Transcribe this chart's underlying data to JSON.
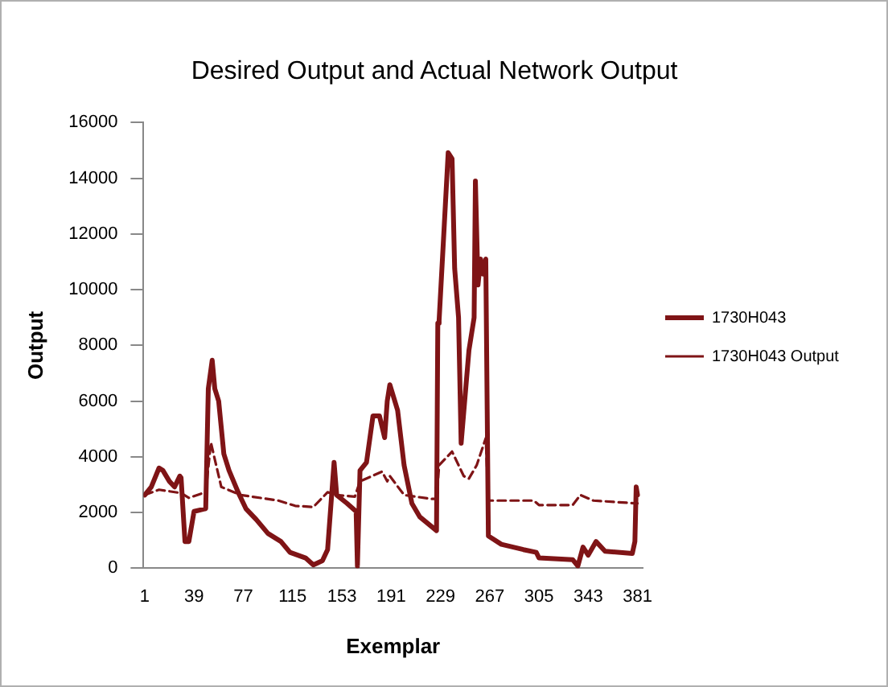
{
  "chart_data": {
    "type": "line",
    "title": "Desired Output and Actual Network Output",
    "xlabel": "Exemplar",
    "ylabel": "Output",
    "xlim": [
      0,
      385
    ],
    "xticks": [
      1,
      39,
      77,
      115,
      153,
      191,
      229,
      267,
      305,
      343,
      381
    ],
    "ylim": [
      0,
      16000
    ],
    "yticks": [
      0,
      2000,
      4000,
      6000,
      8000,
      10000,
      12000,
      14000,
      16000
    ],
    "grid": false,
    "legend": "right",
    "marker": "none",
    "series": [
      {
        "name": "1730H043",
        "color": "#7f1416",
        "line_style": "solid",
        "x": [
          1,
          6,
          12,
          15,
          20,
          24,
          28,
          29,
          32,
          35,
          39,
          48,
          50,
          53,
          55,
          58,
          62,
          66,
          73,
          79,
          87,
          96,
          106,
          113,
          125,
          131,
          138,
          142,
          147,
          149,
          157,
          164,
          165,
          167,
          172,
          177,
          182,
          186,
          188,
          190,
          196,
          201,
          207,
          213,
          226,
          227,
          228,
          232,
          235,
          238,
          240,
          243,
          245,
          251,
          255,
          256,
          258,
          260,
          262,
          264,
          266,
          276,
          293,
          303,
          305,
          331,
          335,
          339,
          343,
          349,
          356,
          377,
          379,
          380,
          381
        ],
        "values": [
          2630,
          2920,
          3600,
          3510,
          3120,
          2920,
          3310,
          3250,
          960,
          960,
          2040,
          2140,
          6450,
          7470,
          6450,
          6000,
          4100,
          3510,
          2730,
          2140,
          1750,
          1250,
          960,
          570,
          370,
          120,
          270,
          670,
          3800,
          2630,
          2330,
          2040,
          80,
          3510,
          3800,
          5470,
          5470,
          4690,
          6000,
          6590,
          5670,
          3700,
          2330,
          1850,
          1350,
          8800,
          8900,
          12330,
          14920,
          14700,
          10760,
          9000,
          4490,
          7820,
          9000,
          13900,
          10170,
          11100,
          10560,
          11100,
          1160,
          860,
          670,
          570,
          370,
          310,
          80,
          760,
          470,
          960,
          610,
          530,
          960,
          2920,
          2630
        ]
      },
      {
        "name": "1730H043 Output",
        "color": "#7f1416",
        "line_style": "dashed",
        "x": [
          1,
          12,
          29,
          35,
          48,
          52,
          60,
          75,
          104,
          117,
          131,
          142,
          149,
          163,
          167,
          184,
          188,
          190,
          201,
          222,
          226,
          228,
          238,
          247,
          251,
          257,
          264,
          266,
          301,
          305,
          331,
          337,
          347,
          380,
          381
        ],
        "values": [
          2630,
          2820,
          2700,
          2530,
          2730,
          4510,
          2920,
          2630,
          2430,
          2240,
          2200,
          2730,
          2630,
          2570,
          3120,
          3470,
          3120,
          3310,
          2630,
          2490,
          2490,
          3700,
          4190,
          3310,
          3220,
          3700,
          4670,
          2430,
          2430,
          2270,
          2270,
          2630,
          2430,
          2330,
          2330
        ]
      }
    ]
  }
}
